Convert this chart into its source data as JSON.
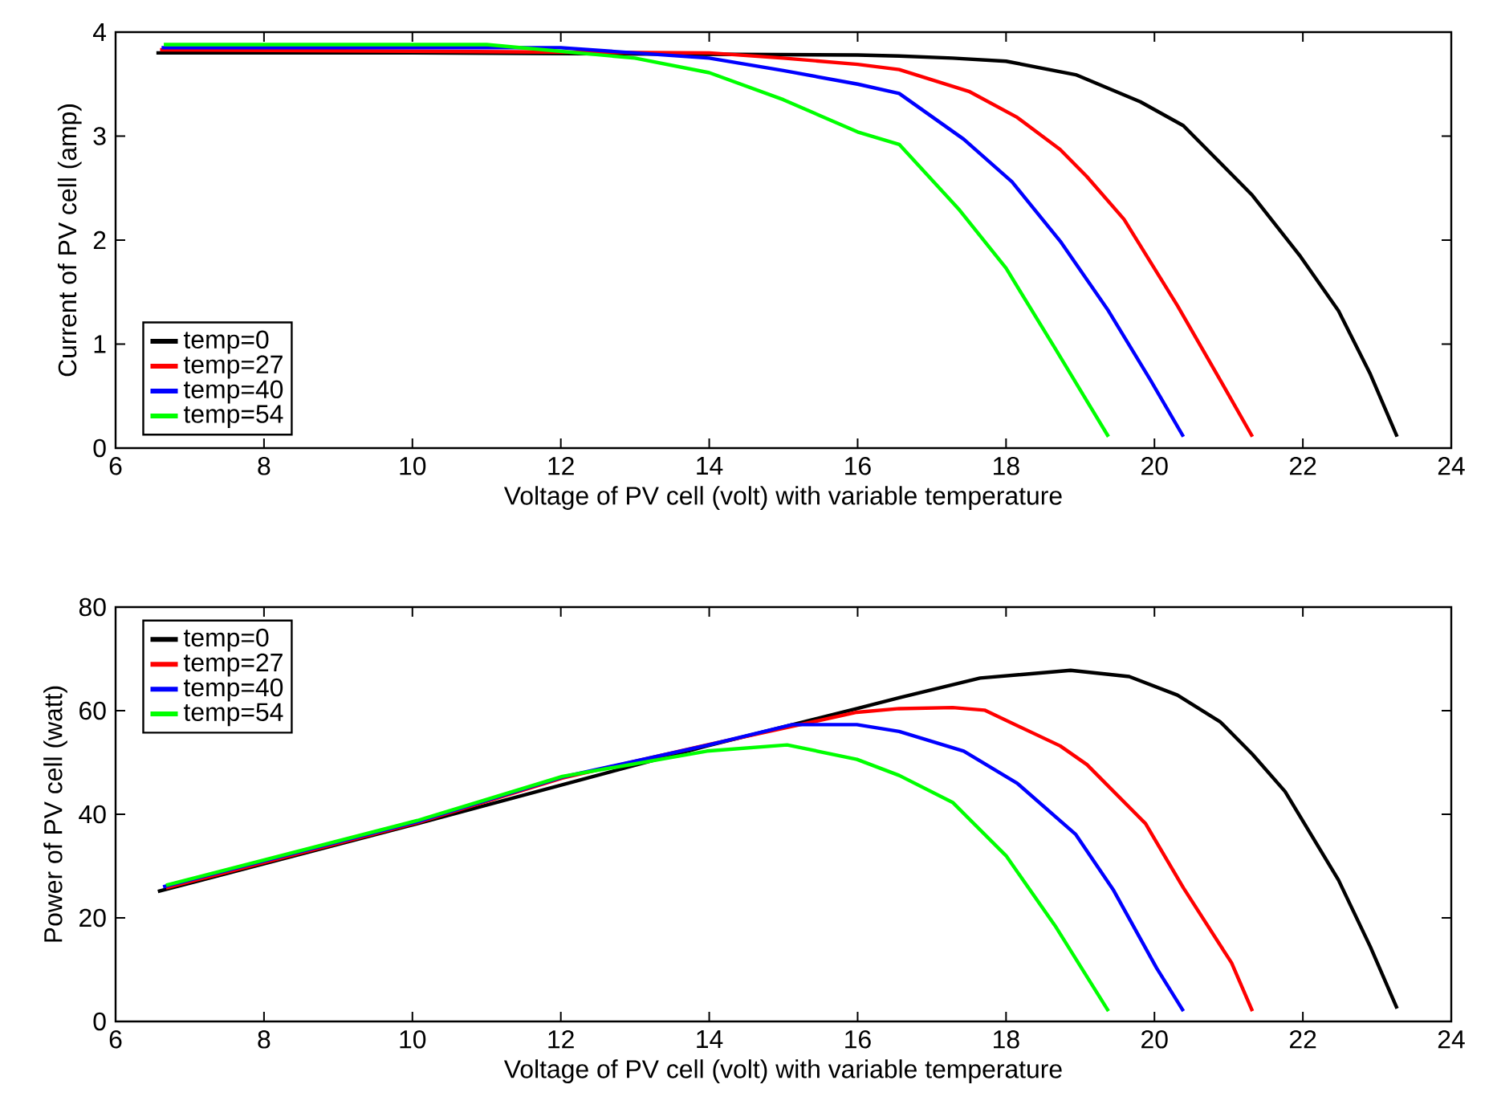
{
  "chart_data": [
    {
      "type": "line",
      "xlabel": "Voltage of PV cell (volt) with variable temperature",
      "ylabel": "Current of PV cell (amp)",
      "xlim": [
        6,
        24
      ],
      "ylim": [
        0,
        4
      ],
      "xticks": [
        6,
        8,
        10,
        12,
        14,
        16,
        18,
        20,
        22,
        24
      ],
      "yticks": [
        0,
        1,
        2,
        3,
        4
      ],
      "legend": "bottom left",
      "grid": false,
      "marker": "none",
      "line_style": "solid",
      "series": [
        {
          "name": "temp=0",
          "color": "#000000",
          "x": [
            6.55,
            10,
            16,
            16.56,
            17.28,
            18.0,
            18.94,
            19.81,
            20.39,
            21.32,
            21.97,
            22.48,
            22.91,
            23.27
          ],
          "values": [
            3.8,
            3.8,
            3.78,
            3.77,
            3.75,
            3.72,
            3.59,
            3.33,
            3.1,
            2.43,
            1.84,
            1.32,
            0.71,
            0.11
          ]
        },
        {
          "name": "temp=27",
          "color": "#ff0000",
          "x": [
            6.6,
            14,
            15,
            16,
            16.56,
            17.5,
            18.15,
            18.73,
            19.09,
            19.59,
            20.31,
            20.89,
            21.32
          ],
          "values": [
            3.83,
            3.8,
            3.75,
            3.69,
            3.64,
            3.43,
            3.18,
            2.87,
            2.61,
            2.2,
            1.37,
            0.65,
            0.11
          ]
        },
        {
          "name": "temp=40",
          "color": "#0000ff",
          "x": [
            6.62,
            12,
            14,
            15,
            16,
            16.56,
            17.43,
            18.08,
            18.73,
            19.38,
            19.95,
            20.39
          ],
          "values": [
            3.85,
            3.85,
            3.75,
            3.63,
            3.5,
            3.41,
            2.97,
            2.56,
            1.99,
            1.32,
            0.65,
            0.11
          ]
        },
        {
          "name": "temp=54",
          "color": "#00ff00",
          "x": [
            6.65,
            11,
            13,
            14,
            15,
            16,
            16.56,
            17.36,
            18.0,
            18.66,
            19.38
          ],
          "values": [
            3.88,
            3.88,
            3.75,
            3.61,
            3.35,
            3.04,
            2.92,
            2.3,
            1.73,
            0.96,
            0.11
          ]
        }
      ]
    },
    {
      "type": "line",
      "xlabel": "Voltage of PV cell (volt) with variable temperature",
      "ylabel": "Power of PV cell (watt)",
      "xlim": [
        6,
        24
      ],
      "ylim": [
        0,
        80
      ],
      "xticks": [
        6,
        8,
        10,
        12,
        14,
        16,
        18,
        20,
        22,
        24
      ],
      "yticks": [
        0,
        20,
        40,
        60,
        80
      ],
      "legend": "top left",
      "grid": false,
      "marker": "none",
      "line_style": "solid",
      "series": [
        {
          "name": "temp=0",
          "color": "#000000",
          "x": [
            6.57,
            10.07,
            13.97,
            15.99,
            16.56,
            17.65,
            18.87,
            19.66,
            20.31,
            20.89,
            21.32,
            21.76,
            22.48,
            22.91,
            23.27
          ],
          "values": [
            25.1,
            38.2,
            53.2,
            60.4,
            62.5,
            66.3,
            67.8,
            66.6,
            63.0,
            57.8,
            51.6,
            44.4,
            27.3,
            14.4,
            2.5
          ]
        },
        {
          "name": "temp=27",
          "color": "#ff0000",
          "x": [
            6.68,
            10.07,
            12.02,
            13.97,
            15.99,
            16.56,
            17.28,
            17.71,
            18.73,
            19.09,
            19.88,
            20.39,
            21.04,
            21.32
          ],
          "values": [
            25.8,
            38.4,
            47.0,
            53.4,
            59.7,
            60.4,
            60.6,
            60.1,
            53.2,
            49.6,
            38.2,
            25.8,
            11.3,
            2.0
          ]
        },
        {
          "name": "temp=40",
          "color": "#0000ff",
          "x": [
            6.64,
            10.07,
            12.02,
            13.97,
            15.12,
            15.99,
            16.56,
            17.43,
            18.15,
            18.94,
            19.45,
            20.03,
            20.39
          ],
          "values": [
            26.0,
            38.6,
            47.2,
            53.3,
            57.3,
            57.3,
            56.0,
            52.2,
            46.0,
            36.1,
            25.3,
            10.3,
            2.0
          ]
        },
        {
          "name": "temp=54",
          "color": "#00ff00",
          "x": [
            6.68,
            10.07,
            12.02,
            13.97,
            15.05,
            15.99,
            16.56,
            17.28,
            18.0,
            18.66,
            19.38
          ],
          "values": [
            26.3,
            38.8,
            47.3,
            52.2,
            53.4,
            50.6,
            47.5,
            42.3,
            32.0,
            18.5,
            2.0
          ]
        }
      ]
    }
  ]
}
